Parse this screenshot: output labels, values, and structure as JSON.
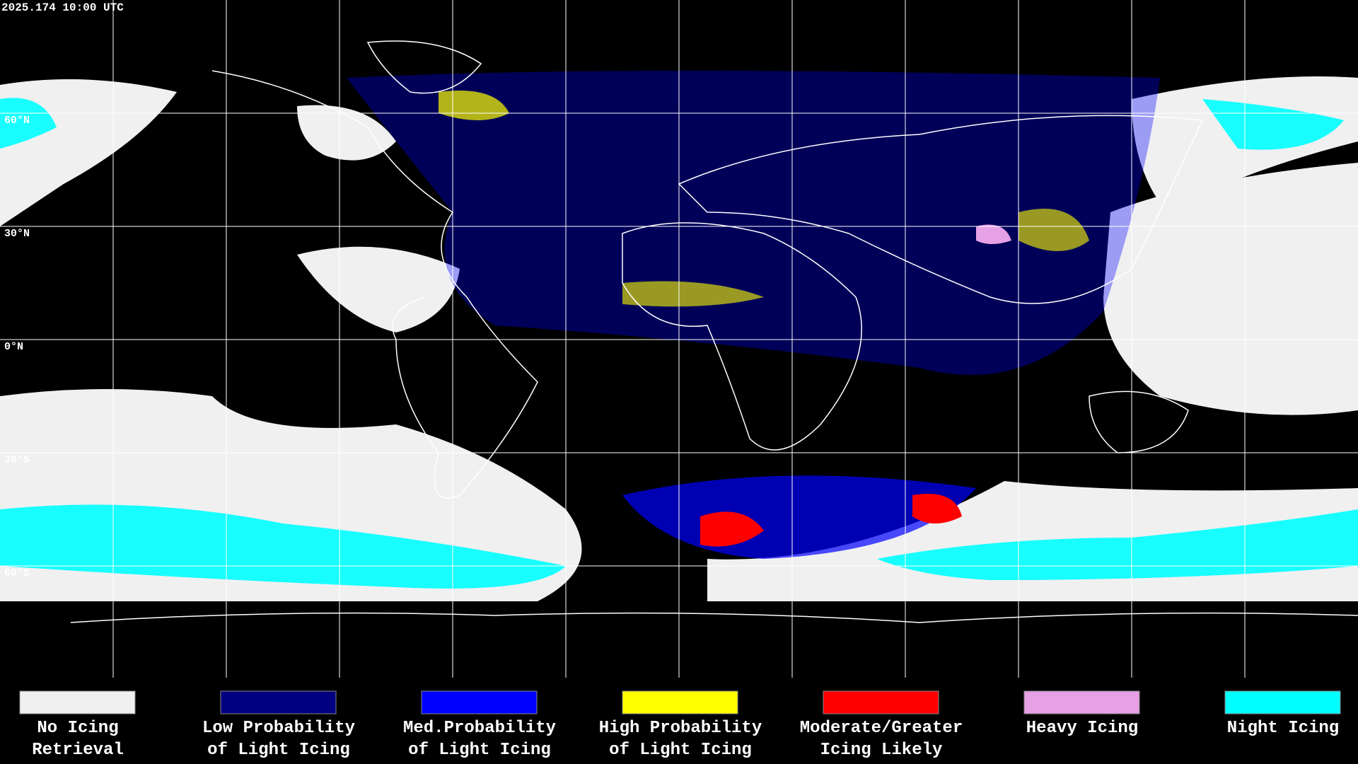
{
  "header": {
    "title": "2025.174 10:00 UTC"
  },
  "map": {
    "latitude_labels": [
      "60°N",
      "30°N",
      "0°N",
      "30°S",
      "60°S"
    ]
  },
  "legend": [
    {
      "color": "#f0f0f0",
      "label": [
        "No Icing",
        "Retrieval"
      ]
    },
    {
      "color": "#000080",
      "label": [
        "Low Probability",
        "of Light Icing"
      ]
    },
    {
      "color": "#0000ff",
      "label": [
        "Med.Probability",
        "of Light Icing"
      ]
    },
    {
      "color": "#ffff00",
      "label": [
        "High Probability",
        "of Light Icing"
      ]
    },
    {
      "color": "#ff0000",
      "label": [
        "Moderate/Greater",
        "Icing Likely"
      ]
    },
    {
      "color": "#e6a0e6",
      "label": [
        "Heavy Icing"
      ]
    },
    {
      "color": "#00ffff",
      "label": [
        "Night Icing"
      ]
    }
  ]
}
